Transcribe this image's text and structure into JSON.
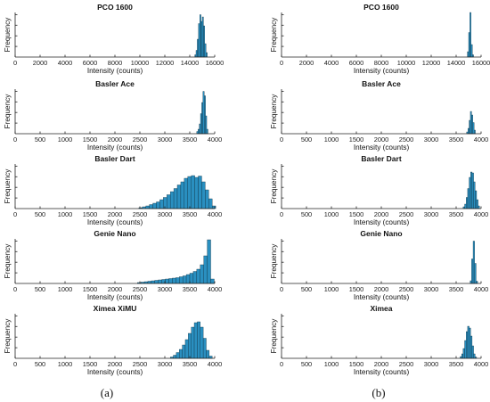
{
  "captions": [
    "(a)",
    "(b)"
  ],
  "colors": {
    "bar": "#2a8fc0",
    "bar_edge": "#0a2a3a",
    "axis": "#222222"
  },
  "chart_data": [
    {
      "type": "bar",
      "column": 0,
      "row": 0,
      "title": "PCO 1600",
      "xlabel": "Intensity (counts)",
      "ylabel": "Frequency",
      "xlim": [
        0,
        16000
      ],
      "xticks": [
        0,
        2000,
        4000,
        6000,
        8000,
        10000,
        12000,
        14000,
        16000
      ],
      "bins": [
        [
          14400,
          0.05
        ],
        [
          14500,
          0.15
        ],
        [
          14600,
          0.4
        ],
        [
          14700,
          0.75
        ],
        [
          14800,
          0.95
        ],
        [
          14900,
          0.8
        ],
        [
          15000,
          0.9
        ],
        [
          15100,
          0.7
        ],
        [
          15200,
          0.3
        ],
        [
          15300,
          0.1
        ]
      ],
      "bin_width": 100
    },
    {
      "type": "bar",
      "column": 0,
      "row": 1,
      "title": "Basler Ace",
      "xlabel": "Intensity (counts)",
      "ylabel": "Frequency",
      "xlim": [
        0,
        4000
      ],
      "xticks": [
        0,
        500,
        1000,
        1500,
        2000,
        2500,
        3000,
        3500,
        4000
      ],
      "bins": [
        [
          3640,
          0.05
        ],
        [
          3665,
          0.1
        ],
        [
          3690,
          0.22
        ],
        [
          3715,
          0.45
        ],
        [
          3740,
          0.7
        ],
        [
          3765,
          0.95
        ],
        [
          3790,
          0.85
        ],
        [
          3815,
          0.4
        ],
        [
          3840,
          0.1
        ]
      ],
      "bin_width": 25
    },
    {
      "type": "bar",
      "column": 0,
      "row": 2,
      "title": "Basler Dart",
      "xlabel": "Intensity (counts)",
      "ylabel": "Frequency",
      "xlim": [
        0,
        4000
      ],
      "xticks": [
        0,
        500,
        1000,
        1500,
        2000,
        2500,
        3000,
        3500,
        4000
      ],
      "bins": [
        [
          2480,
          0.02
        ],
        [
          2550,
          0.04
        ],
        [
          2620,
          0.06
        ],
        [
          2690,
          0.09
        ],
        [
          2760,
          0.12
        ],
        [
          2830,
          0.15
        ],
        [
          2900,
          0.2
        ],
        [
          2970,
          0.25
        ],
        [
          3040,
          0.31
        ],
        [
          3110,
          0.38
        ],
        [
          3180,
          0.45
        ],
        [
          3250,
          0.53
        ],
        [
          3320,
          0.6
        ],
        [
          3390,
          0.68
        ],
        [
          3460,
          0.72
        ],
        [
          3530,
          0.74
        ],
        [
          3600,
          0.7
        ],
        [
          3670,
          0.73
        ],
        [
          3740,
          0.6
        ],
        [
          3810,
          0.42
        ],
        [
          3880,
          0.22
        ],
        [
          3950,
          0.06
        ]
      ],
      "bin_width": 70
    },
    {
      "type": "bar",
      "column": 0,
      "row": 3,
      "title": "Genie Nano",
      "xlabel": "Intensity (counts)",
      "ylabel": "Frequency",
      "xlim": [
        0,
        4000
      ],
      "xticks": [
        0,
        500,
        1000,
        1500,
        2000,
        2500,
        3000,
        3500,
        4000
      ],
      "bins": [
        [
          2450,
          0.02
        ],
        [
          2520,
          0.03
        ],
        [
          2590,
          0.04
        ],
        [
          2660,
          0.05
        ],
        [
          2730,
          0.06
        ],
        [
          2800,
          0.07
        ],
        [
          2870,
          0.08
        ],
        [
          2940,
          0.09
        ],
        [
          3010,
          0.1
        ],
        [
          3080,
          0.11
        ],
        [
          3150,
          0.12
        ],
        [
          3220,
          0.13
        ],
        [
          3290,
          0.15
        ],
        [
          3360,
          0.17
        ],
        [
          3430,
          0.2
        ],
        [
          3500,
          0.23
        ],
        [
          3570,
          0.27
        ],
        [
          3640,
          0.32
        ],
        [
          3710,
          0.42
        ],
        [
          3780,
          0.62
        ],
        [
          3850,
          0.98
        ],
        [
          3920,
          0.1
        ]
      ],
      "bin_width": 70
    },
    {
      "type": "bar",
      "column": 0,
      "row": 4,
      "title": "Ximea XiMU",
      "xlabel": "Intensity (counts)",
      "ylabel": "Frequency",
      "xlim": [
        0,
        4000
      ],
      "xticks": [
        0,
        500,
        1000,
        1500,
        2000,
        2500,
        3000,
        3500,
        4000
      ],
      "bins": [
        [
          3110,
          0.03
        ],
        [
          3170,
          0.07
        ],
        [
          3230,
          0.13
        ],
        [
          3290,
          0.2
        ],
        [
          3350,
          0.3
        ],
        [
          3410,
          0.42
        ],
        [
          3470,
          0.56
        ],
        [
          3530,
          0.7
        ],
        [
          3590,
          0.8
        ],
        [
          3650,
          0.82
        ],
        [
          3710,
          0.7
        ],
        [
          3770,
          0.45
        ],
        [
          3830,
          0.18
        ],
        [
          3890,
          0.05
        ]
      ],
      "bin_width": 60
    },
    {
      "type": "bar",
      "column": 1,
      "row": 0,
      "title": "PCO 1600",
      "xlabel": "Intensity (counts)",
      "ylabel": "Frequency",
      "xlim": [
        0,
        16000
      ],
      "xticks": [
        0,
        2000,
        4000,
        6000,
        8000,
        10000,
        12000,
        14000,
        16000
      ],
      "bins": [
        [
          14900,
          0.12
        ],
        [
          15000,
          0.55
        ],
        [
          15100,
          1.0
        ],
        [
          15200,
          0.28
        ],
        [
          15300,
          0.05
        ]
      ],
      "bin_width": 100
    },
    {
      "type": "bar",
      "column": 1,
      "row": 1,
      "title": "Basler Ace",
      "xlabel": "Intensity (counts)",
      "ylabel": "Frequency",
      "xlim": [
        0,
        4000
      ],
      "xticks": [
        0,
        500,
        1000,
        1500,
        2000,
        2500,
        3000,
        3500,
        4000
      ],
      "bins": [
        [
          3710,
          0.04
        ],
        [
          3735,
          0.12
        ],
        [
          3760,
          0.3
        ],
        [
          3785,
          0.5
        ],
        [
          3810,
          0.42
        ],
        [
          3835,
          0.25
        ],
        [
          3860,
          0.08
        ]
      ],
      "bin_width": 25
    },
    {
      "type": "bar",
      "column": 1,
      "row": 2,
      "title": "Basler Dart",
      "xlabel": "Intensity (counts)",
      "ylabel": "Frequency",
      "xlim": [
        0,
        4000
      ],
      "xticks": [
        0,
        500,
        1000,
        1500,
        2000,
        2500,
        3000,
        3500,
        4000
      ],
      "bins": [
        [
          3640,
          0.04
        ],
        [
          3670,
          0.1
        ],
        [
          3700,
          0.25
        ],
        [
          3730,
          0.45
        ],
        [
          3760,
          0.7
        ],
        [
          3790,
          0.82
        ],
        [
          3820,
          0.8
        ],
        [
          3850,
          0.6
        ],
        [
          3880,
          0.4
        ],
        [
          3910,
          0.2
        ],
        [
          3940,
          0.06
        ]
      ],
      "bin_width": 30
    },
    {
      "type": "bar",
      "column": 1,
      "row": 3,
      "title": "Genie Nano",
      "xlabel": "Intensity (counts)",
      "ylabel": "Frequency",
      "xlim": [
        0,
        4000
      ],
      "xticks": [
        0,
        500,
        1000,
        1500,
        2000,
        2500,
        3000,
        3500,
        4000
      ],
      "bins": [
        [
          3780,
          0.06
        ],
        [
          3810,
          0.55
        ],
        [
          3840,
          0.95
        ],
        [
          3870,
          0.45
        ],
        [
          3900,
          0.05
        ]
      ],
      "bin_width": 30
    },
    {
      "type": "bar",
      "column": 1,
      "row": 4,
      "title": "Ximea",
      "xlabel": "Intensity (counts)",
      "ylabel": "Frequency",
      "xlim": [
        0,
        4000
      ],
      "xticks": [
        0,
        500,
        1000,
        1500,
        2000,
        2500,
        3000,
        3500,
        4000
      ],
      "bins": [
        [
          3580,
          0.04
        ],
        [
          3610,
          0.1
        ],
        [
          3640,
          0.22
        ],
        [
          3670,
          0.4
        ],
        [
          3700,
          0.6
        ],
        [
          3730,
          0.72
        ],
        [
          3760,
          0.68
        ],
        [
          3790,
          0.5
        ],
        [
          3820,
          0.28
        ],
        [
          3850,
          0.1
        ],
        [
          3880,
          0.03
        ]
      ],
      "bin_width": 30
    }
  ]
}
